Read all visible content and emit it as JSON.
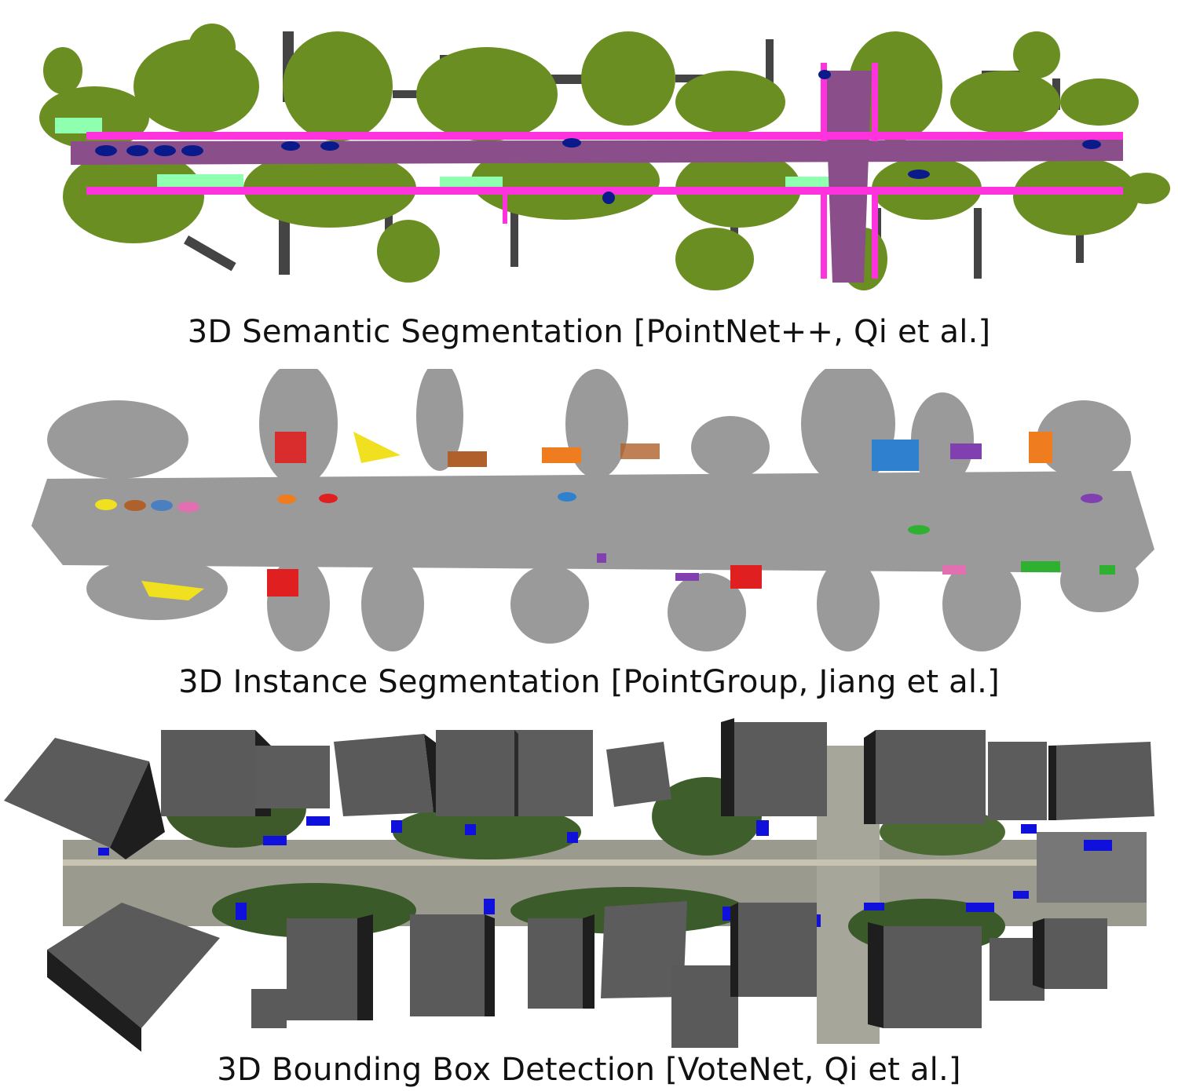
{
  "figure": {
    "panels": [
      {
        "id": "semantic",
        "caption": "3D Semantic Segmentation [PointNet++, Qi et al.]"
      },
      {
        "id": "instance",
        "caption": "3D Instance Segmentation [PointGroup, Jiang et al.]"
      },
      {
        "id": "detection",
        "caption": "3D Bounding Box Detection [VoteNet, Qi et al.]"
      }
    ]
  },
  "colors": {
    "vegetation": "#6b8e23",
    "sidewalk": "#ff33dd",
    "road": "#8a4f8a",
    "terrain": "#8fffb0",
    "building": "#444444",
    "car": "#0a1a8a",
    "instance_base": "#9a9a9a",
    "box": "#555555",
    "box_side": "#1e1e1e",
    "detected_object": "#1010dd"
  }
}
